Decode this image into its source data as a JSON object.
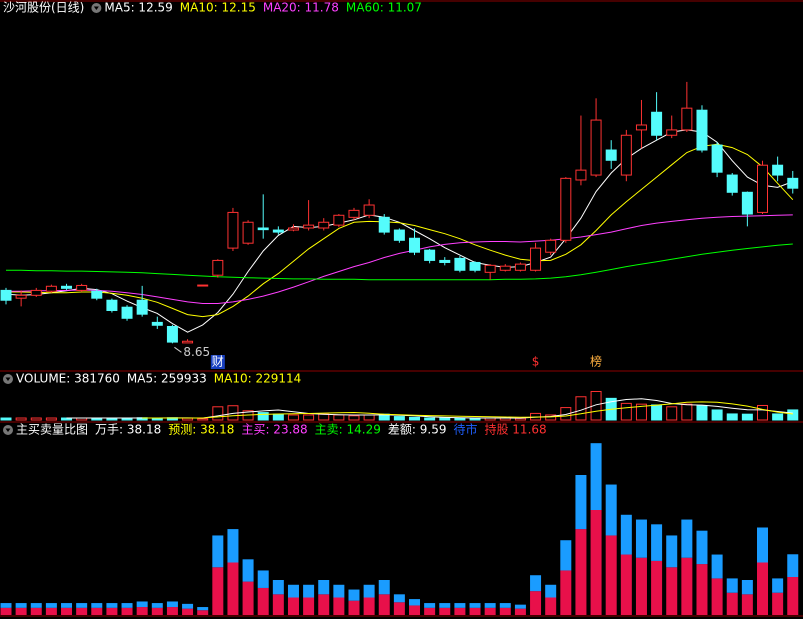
{
  "chart_data": [
    {
      "type": "candlestick",
      "title": "沙河股份(日线)",
      "title_color": "#ffffff",
      "up_color": "#ff3232",
      "down_color": "#54fcfc",
      "ylim": [
        8.0,
        16.65
      ],
      "open": [
        9.94,
        9.75,
        9.82,
        9.92,
        10.04,
        9.94,
        9.92,
        9.7,
        9.53,
        9.7,
        9.16,
        9.06,
        8.66,
        10.05,
        10.31,
        10.97,
        11.09,
        11.46,
        11.41,
        11.41,
        11.46,
        11.46,
        11.53,
        11.72,
        11.77,
        11.72,
        11.41,
        11.21,
        10.92,
        10.67,
        10.72,
        10.62,
        10.38,
        10.43,
        10.43,
        10.43,
        10.87,
        11.16,
        12.63,
        12.75,
        13.36,
        12.75,
        13.85,
        14.28,
        13.72,
        13.85,
        14.33,
        13.48,
        12.75,
        12.33,
        11.84,
        12.99,
        12.67
      ],
      "close": [
        9.7,
        9.82,
        9.94,
        10.04,
        9.99,
        10.06,
        9.75,
        9.45,
        9.26,
        9.36,
        9.09,
        8.68,
        8.7,
        10.07,
        10.67,
        11.84,
        11.6,
        11.42,
        11.36,
        11.46,
        11.53,
        11.6,
        11.77,
        11.89,
        12.02,
        11.36,
        11.16,
        10.87,
        10.67,
        10.62,
        10.43,
        10.43,
        10.55,
        10.53,
        10.58,
        10.97,
        11.16,
        12.67,
        12.87,
        14.09,
        13.11,
        13.72,
        13.97,
        13.72,
        13.85,
        14.38,
        13.36,
        12.82,
        12.33,
        11.8,
        12.99,
        12.75,
        12.43
      ],
      "high": [
        10.0,
        9.94,
        10.0,
        10.08,
        10.1,
        10.1,
        9.98,
        9.74,
        9.58,
        10.05,
        9.3,
        9.1,
        8.75,
        10.07,
        10.7,
        11.95,
        11.65,
        12.28,
        11.5,
        11.55,
        12.14,
        11.7,
        11.8,
        11.95,
        12.16,
        11.8,
        11.45,
        11.45,
        10.95,
        10.75,
        10.78,
        10.65,
        10.58,
        10.58,
        10.62,
        11.1,
        11.2,
        12.7,
        14.2,
        14.62,
        13.6,
        13.85,
        14.58,
        14.77,
        14.2,
        15.02,
        14.45,
        13.55,
        12.8,
        12.35,
        13.1,
        13.2,
        12.85
      ],
      "low": [
        9.6,
        9.55,
        9.78,
        9.88,
        9.95,
        9.9,
        9.7,
        9.4,
        9.2,
        9.3,
        9.0,
        8.65,
        8.66,
        10.05,
        10.25,
        10.9,
        11.05,
        11.2,
        11.3,
        11.38,
        11.4,
        11.4,
        11.48,
        11.65,
        11.7,
        11.3,
        11.1,
        10.8,
        10.6,
        10.55,
        10.38,
        10.38,
        10.2,
        10.4,
        10.4,
        10.4,
        10.8,
        11.1,
        12.5,
        12.7,
        12.9,
        12.6,
        13.4,
        13.6,
        13.65,
        13.8,
        13.3,
        12.7,
        12.25,
        11.5,
        11.8,
        12.6,
        12.3
      ],
      "series": [
        {
          "name": "MA5: 12.59",
          "color": "#ffffff",
          "values": [
            9.85,
            9.82,
            9.84,
            9.88,
            9.93,
            9.99,
            9.96,
            9.86,
            9.68,
            9.52,
            9.38,
            9.13,
            8.92,
            9.1,
            9.4,
            9.85,
            10.4,
            10.9,
            11.28,
            11.5,
            11.47,
            11.5,
            11.58,
            11.66,
            11.78,
            11.72,
            11.6,
            11.4,
            11.2,
            10.98,
            10.8,
            10.62,
            10.55,
            10.5,
            10.52,
            10.62,
            10.75,
            11.2,
            11.7,
            12.35,
            12.8,
            13.15,
            13.4,
            13.6,
            13.8,
            13.85,
            13.8,
            13.55,
            13.1,
            12.7,
            12.5,
            12.45,
            12.59
          ]
        },
        {
          "name": "MA10: 12.15",
          "color": "#ffff00",
          "values": [
            9.9,
            9.9,
            9.89,
            9.88,
            9.88,
            9.9,
            9.9,
            9.87,
            9.82,
            9.75,
            9.65,
            9.5,
            9.35,
            9.3,
            9.35,
            9.55,
            9.8,
            10.1,
            10.35,
            10.65,
            10.95,
            11.2,
            11.45,
            11.6,
            11.62,
            11.61,
            11.59,
            11.52,
            11.42,
            11.32,
            11.2,
            11.05,
            10.92,
            10.8,
            10.7,
            10.66,
            10.67,
            10.82,
            11.05,
            11.4,
            11.78,
            12.1,
            12.4,
            12.7,
            13.0,
            13.3,
            13.45,
            13.5,
            13.42,
            13.25,
            12.95,
            12.55,
            12.15
          ]
        },
        {
          "name": "MA20: 11.78",
          "color": "#ff40ff",
          "values": [
            9.92,
            9.92,
            9.93,
            9.93,
            9.94,
            9.95,
            9.94,
            9.92,
            9.88,
            9.84,
            9.78,
            9.72,
            9.66,
            9.62,
            9.62,
            9.66,
            9.72,
            9.8,
            9.9,
            10.02,
            10.15,
            10.28,
            10.4,
            10.52,
            10.62,
            10.74,
            10.84,
            10.92,
            11.0,
            11.06,
            11.1,
            11.12,
            11.13,
            11.13,
            11.12,
            11.14,
            11.16,
            11.2,
            11.24,
            11.3,
            11.36,
            11.44,
            11.52,
            11.58,
            11.62,
            11.66,
            11.7,
            11.72,
            11.74,
            11.75,
            11.76,
            11.77,
            11.78
          ]
        },
        {
          "name": "MA60: 11.07",
          "color": "#00ff00",
          "values": [
            10.43,
            10.43,
            10.42,
            10.42,
            10.41,
            10.41,
            10.4,
            10.39,
            10.38,
            10.37,
            10.35,
            10.33,
            10.31,
            10.29,
            10.27,
            10.26,
            10.25,
            10.24,
            10.23,
            10.22,
            10.22,
            10.21,
            10.21,
            10.21,
            10.2,
            10.2,
            10.2,
            10.2,
            10.2,
            10.2,
            10.2,
            10.2,
            10.2,
            10.21,
            10.21,
            10.22,
            10.24,
            10.27,
            10.32,
            10.38,
            10.45,
            10.52,
            10.58,
            10.64,
            10.7,
            10.76,
            10.82,
            10.87,
            10.92,
            10.96,
            11.0,
            11.04,
            11.07
          ]
        }
      ],
      "events": [
        null,
        null,
        null,
        null,
        null,
        null,
        null,
        null,
        null,
        null,
        null,
        null,
        null,
        null,
        {
          "label": "财",
          "color": "#ffffff",
          "background": "#1840c0"
        },
        null,
        null,
        null,
        null,
        null,
        null,
        null,
        null,
        null,
        null,
        null,
        null,
        null,
        null,
        null,
        null,
        null,
        null,
        null,
        null,
        {
          "label": "$",
          "color": "#ff3030"
        },
        null,
        null,
        null,
        {
          "label": "榜",
          "color": "#ffb040"
        },
        null,
        null,
        null,
        null,
        null,
        null,
        null,
        null,
        null,
        null,
        null,
        null,
        null
      ]
    },
    {
      "type": "volume",
      "ylim": [
        0,
        1250000
      ],
      "series": [
        {
          "name": "VOLUME: 381760",
          "color": "#ffffff",
          "values": [
            75000,
            75000,
            75000,
            75000,
            75000,
            75000,
            75000,
            75000,
            75000,
            85000,
            75000,
            85000,
            70000,
            50000,
            500000,
            540000,
            350000,
            280000,
            220000,
            190000,
            190000,
            220000,
            190000,
            160000,
            190000,
            220000,
            130000,
            100000,
            75000,
            75000,
            75000,
            75000,
            75000,
            75000,
            65000,
            250000,
            190000,
            470000,
            880000,
            1080000,
            820000,
            630000,
            600000,
            570000,
            500000,
            600000,
            530000,
            380000,
            230000,
            220000,
            550000,
            230000,
            381760
          ]
        },
        {
          "name": "MA5: 259933",
          "color": "#ffffff",
          "values": [
            null,
            null,
            null,
            null,
            75000,
            75000,
            75000,
            75000,
            75000,
            77000,
            77000,
            79000,
            78000,
            73000,
            156000,
            249000,
            302000,
            344000,
            378000,
            316000,
            246000,
            220000,
            202000,
            190000,
            190000,
            196000,
            178000,
            160000,
            124000,
            100000,
            84000,
            75000,
            75000,
            75000,
            73000,
            108000,
            131000,
            210000,
            371000,
            574000,
            688000,
            776000,
            802000,
            740000,
            624000,
            580000,
            566000,
            516000,
            448000,
            392000,
            382000,
            322000,
            259933
          ]
        },
        {
          "name": "MA10: 229114",
          "color": "#ffff00",
          "values": [
            null,
            null,
            null,
            null,
            null,
            null,
            null,
            null,
            null,
            76000,
            76000,
            77000,
            77000,
            74000,
            116000,
            163000,
            191000,
            211000,
            226000,
            236000,
            248000,
            261000,
            273000,
            284000,
            253000,
            221000,
            199000,
            181000,
            167000,
            155000,
            143000,
            132000,
            121000,
            113000,
            102000,
            110000,
            116000,
            153000,
            234000,
            334000,
            408000,
            464000,
            517000,
            566000,
            610000,
            670000,
            687000,
            676000,
            611000,
            525000,
            400000,
            300000,
            229114
          ]
        }
      ]
    },
    {
      "type": "stacked_bar",
      "title": "主买卖量比图",
      "title_color": "#ffffff",
      "ylim": [
        0,
        110
      ],
      "header": [
        {
          "text": "万手: 38.18",
          "color": "#ffffff"
        },
        {
          "text": "预测: 38.18",
          "color": "#ffff00"
        },
        {
          "text": "主买: 23.88",
          "color": "#ff40ff"
        },
        {
          "text": "主卖: 14.29",
          "color": "#00ff00"
        },
        {
          "text": "差额: 9.59",
          "color": "#ffffff"
        },
        {
          "text": "待市",
          "color": "#2060ff"
        },
        {
          "text": "持股 11.68",
          "color": "#ff3030"
        }
      ],
      "series": [
        {
          "color": "#e8104a",
          "values": [
            4.5,
            4.5,
            4.5,
            4.5,
            4.5,
            4.5,
            4.5,
            4.5,
            4.5,
            5,
            4.5,
            5,
            4,
            3,
            30,
            33,
            21,
            17,
            13,
            11,
            11,
            13,
            11,
            9,
            11,
            13,
            8,
            6,
            4.5,
            4.5,
            4.5,
            4.5,
            4.5,
            4.5,
            4,
            15,
            11,
            28,
            54,
            66,
            50,
            38,
            36,
            34,
            30,
            36,
            32,
            23,
            14,
            13,
            33,
            14,
            23.88
          ]
        },
        {
          "color": "#1a9cff",
          "values": [
            3,
            3,
            3,
            3,
            3,
            3,
            3,
            3,
            3,
            3.5,
            3,
            3.5,
            3,
            2,
            20,
            21,
            14,
            11,
            9,
            8,
            8,
            9,
            8,
            7,
            8,
            9,
            5,
            4,
            3,
            3,
            3,
            3,
            3,
            3,
            2.5,
            10,
            8,
            19,
            34,
            42,
            32,
            25,
            24,
            23,
            20,
            24,
            21,
            15,
            9,
            9,
            22,
            9,
            14.29
          ]
        }
      ]
    }
  ]
}
